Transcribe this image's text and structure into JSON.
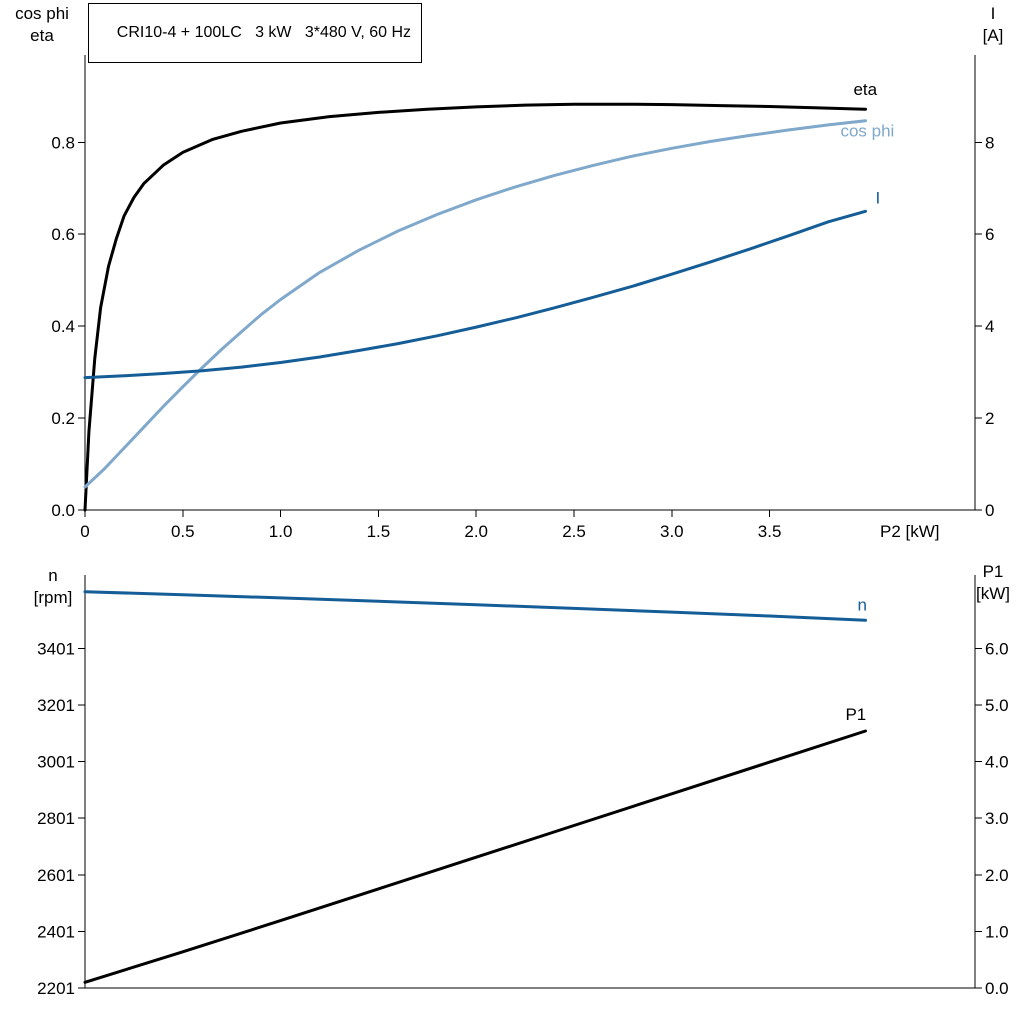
{
  "title_box": {
    "text": "CRI10-4 + 100LC   3 kW   3*480 V, 60 Hz"
  },
  "colors": {
    "black": "#000000",
    "light_blue": "#7fa8cb",
    "dark_blue": "#155d97"
  },
  "chart_data": [
    {
      "type": "line",
      "title": "CRI10-4 + 100LC   3 kW   3*480 V, 60 Hz",
      "xlabel": "P2 [kW]",
      "xlim": [
        0,
        4.55
      ],
      "grid": false,
      "xticks": {
        "values": [
          0,
          0.5,
          1.0,
          1.5,
          2.0,
          2.5,
          3.0,
          3.5
        ],
        "labels": [
          "0",
          "0.5",
          "1.0",
          "1.5",
          "2.0",
          "2.5",
          "3.0",
          "3.5"
        ]
      },
      "axes": {
        "left": {
          "title_lines": [
            "cos phi",
            "eta"
          ],
          "lim": [
            0,
            0.99
          ],
          "ticks": [
            0.0,
            0.2,
            0.4,
            0.6,
            0.8
          ],
          "labels": [
            "0.0",
            "0.2",
            "0.4",
            "0.6",
            "0.8"
          ]
        },
        "right": {
          "title_lines": [
            "I",
            "[A]"
          ],
          "lim": [
            0,
            9.9
          ],
          "ticks": [
            0,
            2,
            4,
            6,
            8
          ],
          "labels": [
            "0",
            "2",
            "4",
            "6",
            "8"
          ]
        }
      },
      "series": [
        {
          "name": "eta",
          "label": "eta",
          "axis": "left",
          "color": "#000000",
          "width": 3,
          "label_offset": [
            -12,
            -14
          ],
          "x": [
            0,
            0.02,
            0.05,
            0.08,
            0.12,
            0.16,
            0.2,
            0.25,
            0.3,
            0.4,
            0.5,
            0.65,
            0.8,
            1.0,
            1.25,
            1.5,
            1.75,
            2.0,
            2.25,
            2.5,
            2.75,
            3.0,
            3.25,
            3.5,
            3.75,
            3.99
          ],
          "y": [
            0,
            0.17,
            0.33,
            0.44,
            0.53,
            0.59,
            0.64,
            0.68,
            0.71,
            0.75,
            0.778,
            0.806,
            0.824,
            0.842,
            0.856,
            0.865,
            0.872,
            0.877,
            0.881,
            0.883,
            0.883,
            0.882,
            0.88,
            0.878,
            0.875,
            0.872
          ]
        },
        {
          "name": "cos phi",
          "label": "cos phi",
          "axis": "left",
          "color": "#7fa8cb",
          "width": 3,
          "label_offset": [
            -25,
            16
          ],
          "x": [
            0,
            0.1,
            0.2,
            0.3,
            0.4,
            0.5,
            0.6,
            0.7,
            0.8,
            0.9,
            1.0,
            1.2,
            1.4,
            1.6,
            1.8,
            2.0,
            2.2,
            2.4,
            2.6,
            2.8,
            3.0,
            3.2,
            3.4,
            3.6,
            3.8,
            3.99
          ],
          "y": [
            0.05,
            0.09,
            0.135,
            0.18,
            0.225,
            0.268,
            0.31,
            0.35,
            0.388,
            0.425,
            0.458,
            0.517,
            0.565,
            0.607,
            0.643,
            0.675,
            0.703,
            0.728,
            0.75,
            0.77,
            0.787,
            0.802,
            0.815,
            0.827,
            0.838,
            0.847
          ]
        },
        {
          "name": "I",
          "label": "I",
          "axis": "right",
          "color": "#155d97",
          "width": 3,
          "label_offset": [
            10,
            -8
          ],
          "x": [
            0,
            0.2,
            0.4,
            0.6,
            0.8,
            1.0,
            1.2,
            1.4,
            1.6,
            1.8,
            2.0,
            2.2,
            2.4,
            2.6,
            2.8,
            3.0,
            3.2,
            3.4,
            3.6,
            3.8,
            3.99
          ],
          "y": [
            2.88,
            2.92,
            2.97,
            3.03,
            3.11,
            3.21,
            3.33,
            3.47,
            3.62,
            3.79,
            3.98,
            4.18,
            4.4,
            4.63,
            4.87,
            5.13,
            5.4,
            5.68,
            5.97,
            6.27,
            6.5
          ]
        }
      ]
    },
    {
      "type": "line",
      "title": "",
      "xlabel": "",
      "xlim": [
        0,
        4.55
      ],
      "grid": false,
      "xticks": null,
      "axes": {
        "left": {
          "title_lines": [
            "n",
            "[rpm]"
          ],
          "lim": [
            2201,
            3660
          ],
          "ticks": [
            2201,
            2401,
            2601,
            2801,
            3001,
            3201,
            3401
          ],
          "labels": [
            "2201",
            "2401",
            "2601",
            "2801",
            "3001",
            "3201",
            "3401"
          ]
        },
        "right": {
          "title_lines": [
            "P1",
            "[kW]"
          ],
          "lim": [
            0,
            7.295
          ],
          "ticks": [
            0,
            1,
            2,
            3,
            4,
            5,
            6
          ],
          "labels": [
            "0.0",
            "1.0",
            "2.0",
            "3.0",
            "4.0",
            "5.0",
            "6.0"
          ]
        }
      },
      "series": [
        {
          "name": "n",
          "label": "n",
          "axis": "left",
          "color": "#155d97",
          "width": 3,
          "label_offset": [
            -8,
            -10
          ],
          "x": [
            0,
            0.5,
            1.0,
            1.5,
            2.0,
            2.5,
            3.0,
            3.5,
            3.99
          ],
          "y": [
            3601,
            3590,
            3579,
            3567,
            3555,
            3542,
            3529,
            3515,
            3500
          ]
        },
        {
          "name": "P1",
          "label": "P1",
          "axis": "right",
          "color": "#000000",
          "width": 3,
          "label_offset": [
            -20,
            -11
          ],
          "x": [
            0,
            0.5,
            1.0,
            1.5,
            2.0,
            2.5,
            3.0,
            3.5,
            3.99
          ],
          "y": [
            0.1,
            0.64,
            1.19,
            1.75,
            2.31,
            2.87,
            3.43,
            3.99,
            4.54
          ]
        }
      ]
    }
  ]
}
